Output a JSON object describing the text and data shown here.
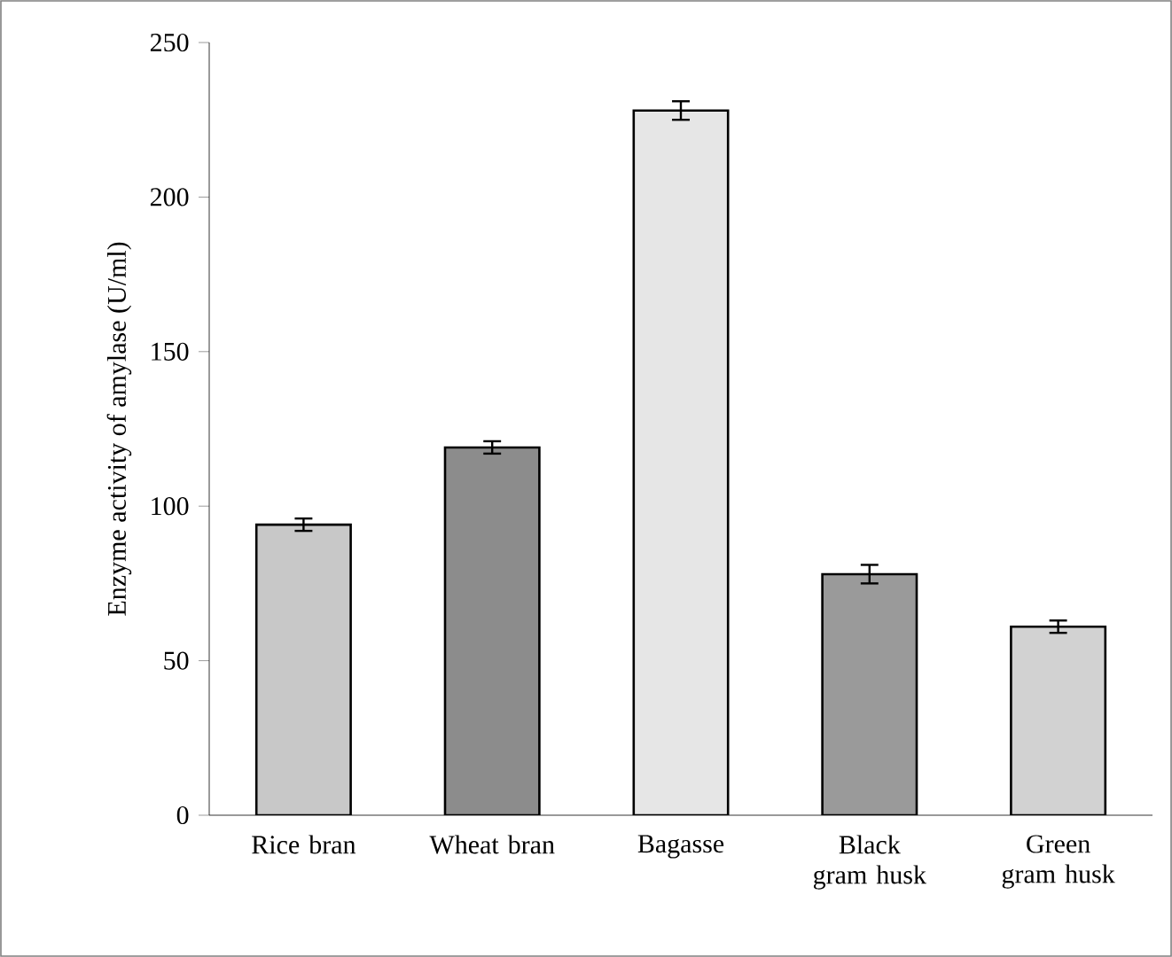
{
  "chart_data": {
    "type": "bar",
    "ylabel": "Enzyme activity of amylase (U/ml)",
    "categories": [
      "Rice bran",
      "Wheat bran",
      "Bagasse",
      "Black gram husk",
      "Green gram husk"
    ],
    "values": [
      94,
      119,
      228,
      78,
      61
    ],
    "errors": [
      2,
      2,
      3,
      3,
      2
    ],
    "colors": [
      "#c8c8c8",
      "#8c8c8c",
      "#e6e6e6",
      "#9a9a9a",
      "#d2d2d2"
    ],
    "ylim": [
      0,
      250
    ],
    "yticks": [
      0,
      50,
      100,
      150,
      200,
      250
    ],
    "grid": false
  }
}
